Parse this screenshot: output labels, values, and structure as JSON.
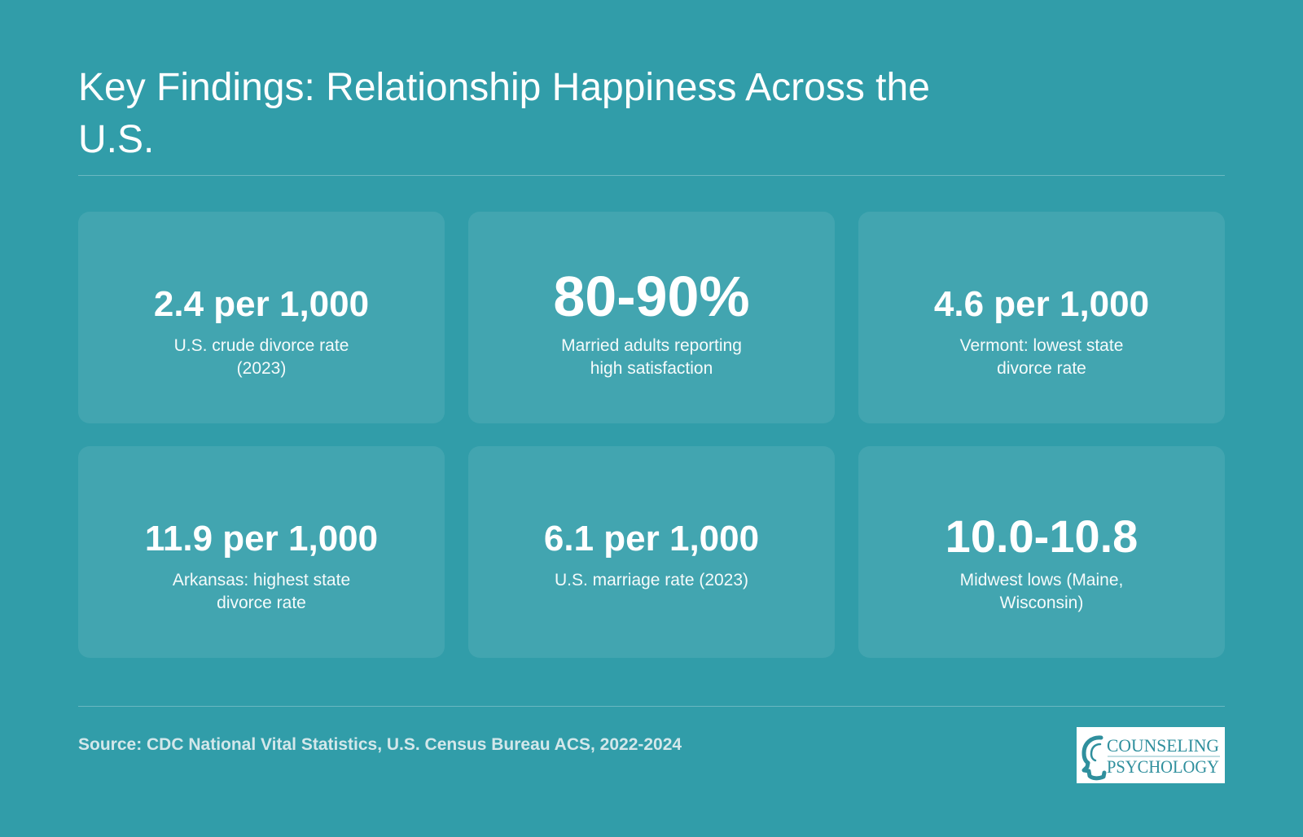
{
  "header": {
    "title": "Key Findings: Relationship Happiness Across the U.S."
  },
  "cards": [
    {
      "stat": "2.4 per 1,000",
      "label": "U.S. crude divorce rate (2023)"
    },
    {
      "stat": "80-90%",
      "label": "Married adults reporting high satisfaction"
    },
    {
      "stat": "4.6 per 1,000",
      "label": "Vermont: lowest state divorce rate"
    },
    {
      "stat": "11.9 per 1,000",
      "label": "Arkansas: highest state divorce rate"
    },
    {
      "stat": "6.1 per 1,000",
      "label": "U.S. marriage rate (2023)"
    },
    {
      "stat": "10.0-10.8",
      "label": "Midwest lows (Maine, Wisconsin)"
    }
  ],
  "footer": {
    "source": "Source: CDC National Vital Statistics, U.S. Census Bureau ACS, 2022-2024",
    "logo_line1": "COUNSELING",
    "logo_line2": "PSYCHOLOGY"
  },
  "colors": {
    "background": "#319da9",
    "card": "rgba(255,255,255,0.085)",
    "logo_text": "#2f8f9d"
  }
}
